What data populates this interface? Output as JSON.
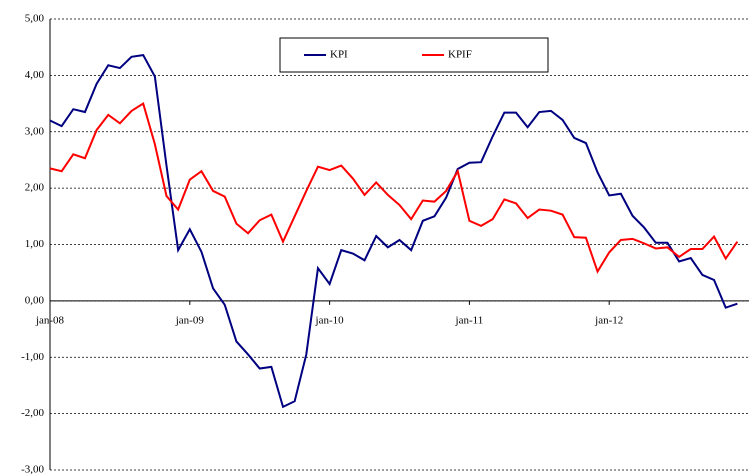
{
  "chart_data": {
    "type": "line",
    "categories": [
      "jan-08",
      null,
      null,
      null,
      null,
      null,
      null,
      null,
      null,
      null,
      null,
      null,
      "jan-09",
      null,
      null,
      null,
      null,
      null,
      null,
      null,
      null,
      null,
      null,
      null,
      "jan-10",
      null,
      null,
      null,
      null,
      null,
      null,
      null,
      null,
      null,
      null,
      null,
      "jan-11",
      null,
      null,
      null,
      null,
      null,
      null,
      null,
      null,
      null,
      null,
      null,
      "jan-12",
      null,
      null,
      null,
      null,
      null,
      null,
      null,
      null,
      null,
      null,
      null
    ],
    "series": [
      {
        "name": "KPI",
        "color": "#000080",
        "values": [
          3.2,
          3.1,
          3.4,
          3.35,
          3.85,
          4.18,
          4.13,
          4.33,
          4.36,
          3.98,
          2.4,
          0.9,
          1.27,
          0.87,
          0.22,
          -0.07,
          -0.72,
          -0.95,
          -1.2,
          -1.17,
          -1.88,
          -1.78,
          -0.95,
          0.58,
          0.3,
          0.9,
          0.84,
          0.72,
          1.15,
          0.95,
          1.08,
          0.9,
          1.42,
          1.5,
          1.83,
          2.34,
          2.45,
          2.46,
          2.92,
          3.34,
          3.34,
          3.08,
          3.35,
          3.37,
          3.21,
          2.89,
          2.8,
          2.28,
          1.87,
          1.9,
          1.51,
          1.3,
          1.03,
          1.03,
          0.7,
          0.76,
          0.46,
          0.37,
          -0.12,
          -0.05
        ]
      },
      {
        "name": "KPIF",
        "color": "#ff0000",
        "values": [
          2.35,
          2.3,
          2.6,
          2.53,
          3.03,
          3.3,
          3.15,
          3.37,
          3.5,
          2.78,
          1.86,
          1.62,
          2.15,
          2.3,
          1.95,
          1.85,
          1.37,
          1.2,
          1.43,
          1.53,
          1.05,
          1.5,
          1.95,
          2.38,
          2.32,
          2.4,
          2.17,
          1.88,
          2.1,
          1.88,
          1.7,
          1.45,
          1.78,
          1.76,
          1.95,
          2.3,
          1.42,
          1.33,
          1.45,
          1.8,
          1.73,
          1.47,
          1.62,
          1.6,
          1.53,
          1.13,
          1.12,
          0.52,
          0.86,
          1.08,
          1.1,
          1.02,
          0.93,
          0.95,
          0.78,
          0.92,
          0.92,
          1.14,
          0.75,
          1.05
        ]
      }
    ],
    "ylim": [
      -3,
      5
    ],
    "yticks": [
      {
        "value": -3,
        "label": "-3,00"
      },
      {
        "value": -2,
        "label": "-2,00"
      },
      {
        "value": -1,
        "label": "-1,00"
      },
      {
        "value": 0,
        "label": "0,00"
      },
      {
        "value": 1,
        "label": "1,00"
      },
      {
        "value": 2,
        "label": "2,00"
      },
      {
        "value": 3,
        "label": "3,00"
      },
      {
        "value": 4,
        "label": "4,00"
      },
      {
        "value": 5,
        "label": "5,00"
      }
    ],
    "grid": true,
    "legend": "top"
  }
}
